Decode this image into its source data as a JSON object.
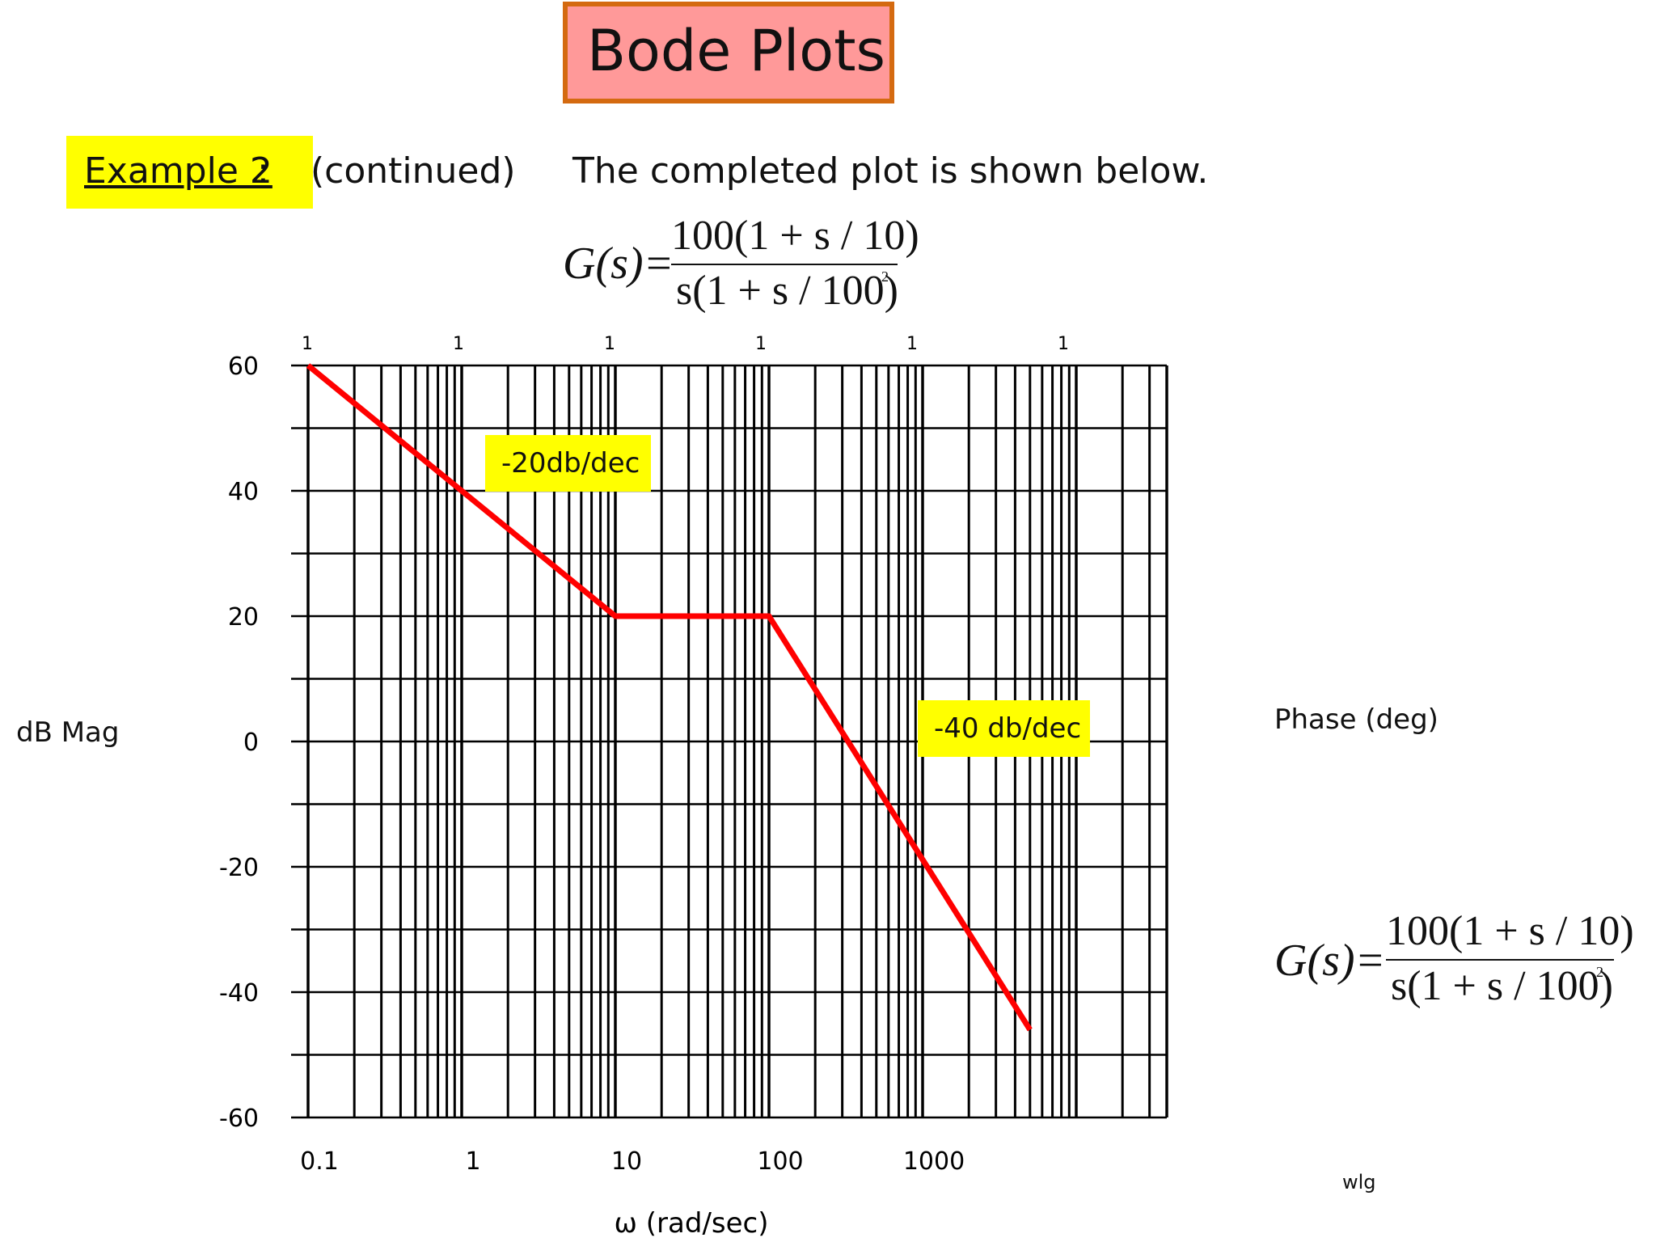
{
  "slide": {
    "title": "Bode Plots",
    "example_label": "Example 2",
    "example_colon": ":",
    "continued": "(continued)",
    "description": "The completed plot is shown below.",
    "footer": "wlg"
  },
  "formula": {
    "lhs": "G(s)=",
    "numerator": "100(1 + s / 10)",
    "denominator": "s(1 + s / 100)",
    "exponent": "2"
  },
  "labels": {
    "y_left": "dB Mag",
    "y_right": "Phase (deg)",
    "x": "ω (rad/sec)",
    "slope1": "-20db/dec",
    "slope2": "-40 db/dec"
  },
  "colors": {
    "curve": "#ff0000",
    "grid": "#000000",
    "highlight": "#ffff00",
    "title_fill": "#ff9999",
    "title_border": "#d46a10"
  },
  "chart_data": {
    "type": "line",
    "x_scale": "log",
    "xlim": [
      0.1,
      10000
    ],
    "ylim": [
      -60,
      60
    ],
    "y_ticks": [
      60,
      40,
      20,
      0,
      -20,
      -40,
      -60
    ],
    "x_tick_labels": [
      "0.1",
      "1",
      "10",
      "100",
      "1000"
    ],
    "top_tick_labels": [
      "1",
      "1",
      "1",
      "1",
      "1",
      "1"
    ],
    "xlabel": "ω (rad/sec)",
    "ylabel": "dB Mag",
    "grid": true,
    "series": [
      {
        "points": [
          {
            "x": 0.1,
            "y": 60
          },
          {
            "x": 10,
            "y": 20
          },
          {
            "x": 100,
            "y": 20
          },
          {
            "x": 5000,
            "y": -46
          }
        ]
      }
    ],
    "annotations": [
      "-20db/dec",
      "-40 db/dec"
    ]
  }
}
